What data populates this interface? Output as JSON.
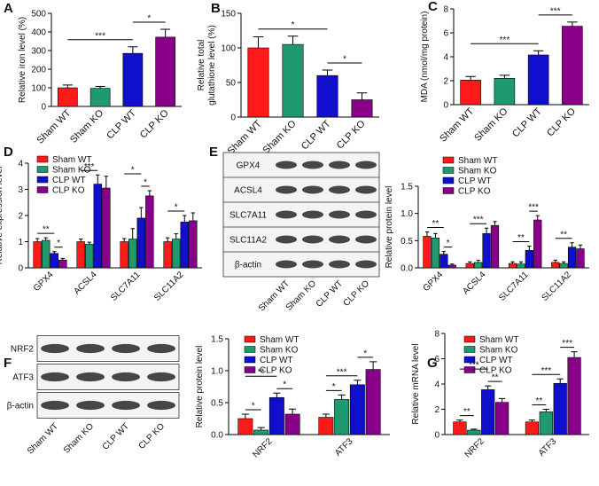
{
  "chart_data": [
    {
      "type": "bar",
      "panel": "A",
      "ylabel": [
        "Relative iron level (%)"
      ],
      "categories": [
        "Sham WT",
        "Sham KO",
        "CLP WT",
        "CLP KO"
      ],
      "values": [
        100,
        97,
        285,
        372
      ],
      "errors": [
        15,
        10,
        35,
        42
      ],
      "colors": [
        "#ff1a1a",
        "#1f9a6e",
        "#1010cc",
        "#880088"
      ],
      "ylim": [
        0,
        500
      ],
      "yticks": [
        0,
        100,
        200,
        300,
        400,
        500
      ],
      "annotations": [
        {
          "label": "***",
          "between": [
            "Sham WT",
            "CLP WT"
          ]
        },
        {
          "label": "*",
          "between": [
            "CLP WT",
            "CLP KO"
          ]
        }
      ]
    },
    {
      "type": "bar",
      "panel": "B",
      "ylabel": [
        "Relative total",
        "glutathione level (%)"
      ],
      "categories": [
        "Sham WT",
        "Sham KO",
        "CLP WT",
        "CLP KO"
      ],
      "values": [
        100,
        105,
        60,
        25
      ],
      "errors": [
        16,
        12,
        8,
        10
      ],
      "colors": [
        "#ff1a1a",
        "#1f9a6e",
        "#1010cc",
        "#880088"
      ],
      "ylim": [
        0,
        150
      ],
      "yticks": [
        0,
        50,
        100,
        150
      ],
      "annotations": [
        {
          "label": "*",
          "between": [
            "CLP WT",
            "CLP KO"
          ]
        },
        {
          "label": "*",
          "between": [
            "Sham WT",
            "CLP WT"
          ]
        }
      ]
    },
    {
      "type": "bar",
      "panel": "C",
      "ylabel": [
        "MDA (nmol/mg protein)"
      ],
      "categories": [
        "Sham WT",
        "Sham KO",
        "CLP WT",
        "CLP KO"
      ],
      "values": [
        2.05,
        2.2,
        4.15,
        6.55
      ],
      "errors": [
        0.3,
        0.25,
        0.35,
        0.35
      ],
      "colors": [
        "#ff1a1a",
        "#1f9a6e",
        "#1010cc",
        "#880088"
      ],
      "ylim": [
        0,
        8
      ],
      "yticks": [
        0,
        2,
        4,
        6,
        8
      ],
      "annotations": [
        {
          "label": "***",
          "between": [
            "Sham WT",
            "CLP WT"
          ]
        },
        {
          "label": "***",
          "between": [
            "CLP WT",
            "CLP KO"
          ]
        }
      ]
    },
    {
      "type": "bar",
      "panel": "D",
      "ylabel": [
        "Relative expression level"
      ],
      "legend": "upper left",
      "categories": [
        "GPX4",
        "ACSL4",
        "SLC7A11",
        "SLC11A2"
      ],
      "series": [
        {
          "name": "Sham WT",
          "color": "#ff1a1a",
          "values": [
            1.0,
            1.0,
            1.0,
            1.0
          ],
          "errors": [
            0.12,
            0.1,
            0.12,
            0.15
          ]
        },
        {
          "name": "Sham KO",
          "color": "#1f9a6e",
          "values": [
            1.05,
            0.9,
            1.1,
            1.1
          ],
          "errors": [
            0.1,
            0.08,
            0.4,
            0.2
          ]
        },
        {
          "name": "CLP WT",
          "color": "#1010cc",
          "values": [
            0.55,
            3.2,
            1.9,
            1.75
          ],
          "errors": [
            0.07,
            0.35,
            0.4,
            0.25
          ]
        },
        {
          "name": "CLP KO",
          "color": "#880088",
          "values": [
            0.3,
            3.05,
            2.75,
            1.8
          ],
          "errors": [
            0.06,
            0.45,
            0.2,
            0.3
          ]
        }
      ],
      "ylim": [
        0,
        4
      ],
      "yticks": [
        0,
        1,
        2,
        3,
        4
      ],
      "annotations": [
        {
          "label": "*",
          "category": "GPX4",
          "between": [
            "CLP WT",
            "CLP KO"
          ]
        },
        {
          "label": "**",
          "category": "GPX4",
          "between": [
            "Sham WT",
            "CLP WT"
          ]
        },
        {
          "label": "***",
          "category": "ACSL4",
          "between": [
            "Sham WT",
            "CLP WT"
          ]
        },
        {
          "label": "*",
          "category": "SLC7A11",
          "between": [
            "CLP WT",
            "CLP KO"
          ]
        },
        {
          "label": "*",
          "category": "SLC7A11",
          "between": [
            "Sham WT",
            "CLP WT"
          ]
        },
        {
          "label": "*",
          "category": "SLC11A2",
          "between": [
            "Sham WT",
            "CLP WT"
          ]
        }
      ]
    },
    {
      "type": "blot",
      "panel": "E",
      "rows": [
        "GPX4",
        "ACSL4",
        "SLC7A11",
        "SLC11A2",
        "β-actin"
      ],
      "categories": [
        "Sham WT",
        "Sham KO",
        "CLP WT",
        "CLP KO"
      ]
    },
    {
      "type": "bar",
      "ylabel": [
        "Relative protein level"
      ],
      "legend": "upper left",
      "categories": [
        "GPX4",
        "ACSL4",
        "SLC7A11",
        "SLC11A2"
      ],
      "series": [
        {
          "name": "Sham WT",
          "color": "#ff1a1a",
          "values": [
            0.58,
            0.08,
            0.08,
            0.1
          ],
          "errors": [
            0.08,
            0.03,
            0.03,
            0.04
          ]
        },
        {
          "name": "Sham KO",
          "color": "#1f9a6e",
          "values": [
            0.55,
            0.1,
            0.07,
            0.08
          ],
          "errors": [
            0.08,
            0.04,
            0.04,
            0.03
          ]
        },
        {
          "name": "CLP WT",
          "color": "#1010cc",
          "values": [
            0.25,
            0.63,
            0.32,
            0.38
          ],
          "errors": [
            0.05,
            0.1,
            0.08,
            0.08
          ]
        },
        {
          "name": "CLP KO",
          "color": "#880088",
          "values": [
            0.05,
            0.78,
            0.88,
            0.35
          ],
          "errors": [
            0.02,
            0.07,
            0.08,
            0.07
          ]
        }
      ],
      "ylim": [
        0,
        1.5
      ],
      "yticks": [
        {
          "value": 0,
          "label": "0.0"
        },
        {
          "value": 0.5,
          "label": "0.5"
        },
        {
          "value": 1,
          "label": "1.0"
        },
        {
          "value": 1.5,
          "label": "1.5"
        }
      ],
      "annotations": [
        {
          "label": "*",
          "category": "GPX4",
          "between": [
            "CLP WT",
            "CLP KO"
          ]
        },
        {
          "label": "**",
          "category": "GPX4",
          "between": [
            "Sham WT",
            "CLP WT"
          ]
        },
        {
          "label": "***",
          "category": "ACSL4",
          "between": [
            "Sham WT",
            "CLP WT"
          ]
        },
        {
          "label": "**",
          "category": "SLC7A11",
          "between": [
            "Sham WT",
            "CLP WT"
          ]
        },
        {
          "label": "***",
          "category": "SLC7A11",
          "between": [
            "CLP WT",
            "CLP KO"
          ]
        },
        {
          "label": "**",
          "category": "SLC11A2",
          "between": [
            "Sham WT",
            "CLP WT"
          ]
        }
      ]
    },
    {
      "type": "blot",
      "panel": "F",
      "rows": [
        "NRF2",
        "ATF3",
        "β-actin"
      ],
      "categories": [
        "Sham WT",
        "Sham KO",
        "CLP WT",
        "CLP KO"
      ]
    },
    {
      "type": "bar",
      "ylabel": [
        "Relative protein level"
      ],
      "legend": "upper left",
      "categories": [
        "NRF2",
        "ATF3"
      ],
      "series": [
        {
          "name": "Sham WT",
          "color": "#ff1a1a",
          "values": [
            0.25,
            0.27
          ],
          "errors": [
            0.07,
            0.05
          ]
        },
        {
          "name": "Sham KO",
          "color": "#1f9a6e",
          "values": [
            0.07,
            0.55
          ],
          "errors": [
            0.04,
            0.07
          ]
        },
        {
          "name": "CLP WT",
          "color": "#1010cc",
          "values": [
            0.58,
            0.78
          ],
          "errors": [
            0.07,
            0.07
          ]
        },
        {
          "name": "CLP KO",
          "color": "#880088",
          "values": [
            0.32,
            1.02
          ],
          "errors": [
            0.08,
            0.12
          ]
        }
      ],
      "ylim": [
        0,
        1.5
      ],
      "yticks": [
        {
          "value": 0,
          "label": "0.0"
        },
        {
          "value": 0.5,
          "label": "0.5"
        },
        {
          "value": 1,
          "label": "1.0"
        },
        {
          "value": 1.5,
          "label": "1.5"
        }
      ],
      "annotations": [
        {
          "label": "*",
          "category": "NRF2",
          "between": [
            "Sham WT",
            "Sham KO"
          ]
        },
        {
          "label": "*",
          "category": "NRF2",
          "between": [
            "CLP WT",
            "CLP KO"
          ]
        },
        {
          "label": "**",
          "category": "NRF2",
          "between": [
            "Sham WT",
            "CLP WT"
          ]
        },
        {
          "label": "*",
          "category": "ATF3",
          "between": [
            "Sham WT",
            "Sham KO"
          ]
        },
        {
          "label": "***",
          "category": "ATF3",
          "between": [
            "Sham WT",
            "CLP WT"
          ]
        },
        {
          "label": "*",
          "category": "ATF3",
          "between": [
            "CLP WT",
            "CLP KO"
          ]
        }
      ]
    },
    {
      "type": "bar",
      "panel": "G",
      "ylabel": [
        "Relative mRNA level"
      ],
      "legend": "upper left",
      "categories": [
        "NRF2",
        "ATF3"
      ],
      "series": [
        {
          "name": "Sham WT",
          "color": "#ff1a1a",
          "values": [
            1.0,
            1.0
          ],
          "errors": [
            0.15,
            0.15
          ]
        },
        {
          "name": "Sham KO",
          "color": "#1f9a6e",
          "values": [
            0.35,
            1.8
          ],
          "errors": [
            0.08,
            0.2
          ]
        },
        {
          "name": "CLP WT",
          "color": "#1010cc",
          "values": [
            3.55,
            4.05
          ],
          "errors": [
            0.3,
            0.35
          ]
        },
        {
          "name": "CLP KO",
          "color": "#880088",
          "values": [
            2.55,
            6.1
          ],
          "errors": [
            0.3,
            0.45
          ]
        }
      ],
      "ylim": [
        0,
        8
      ],
      "yticks": [
        0,
        2,
        4,
        6,
        8
      ],
      "annotations": [
        {
          "label": "**",
          "category": "NRF2",
          "between": [
            "Sham WT",
            "Sham KO"
          ]
        },
        {
          "label": "**",
          "category": "NRF2",
          "between": [
            "CLP WT",
            "CLP KO"
          ]
        },
        {
          "label": "***",
          "category": "NRF2",
          "between": [
            "Sham WT",
            "CLP WT"
          ]
        },
        {
          "label": "**",
          "category": "ATF3",
          "between": [
            "Sham WT",
            "Sham KO"
          ]
        },
        {
          "label": "***",
          "category": "ATF3",
          "between": [
            "Sham WT",
            "CLP WT"
          ]
        },
        {
          "label": "***",
          "category": "ATF3",
          "between": [
            "CLP WT",
            "CLP KO"
          ]
        }
      ]
    }
  ]
}
